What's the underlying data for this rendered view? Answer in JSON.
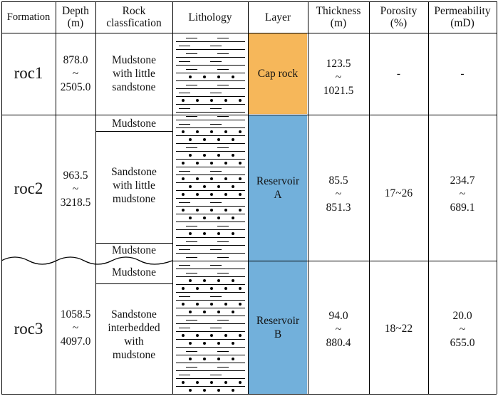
{
  "colors": {
    "cap_rock": "#F6B75A",
    "reservoir": "#72B0DB"
  },
  "headers": {
    "formation": "Formation",
    "depth": [
      "Depth",
      "(m)"
    ],
    "rock_class": [
      "Rock",
      "classfication"
    ],
    "lithology": "Lithology",
    "layer": "Layer",
    "thickness": [
      "Thickness",
      "(m)"
    ],
    "porosity": [
      "Porosity",
      "(%)"
    ],
    "permeability": [
      "Permeability",
      "(mD)"
    ]
  },
  "rows": [
    {
      "formation": "roc1",
      "depth": [
        "878.0",
        "~",
        "2505.0"
      ],
      "rock_class": [
        "Mudstone",
        "with little",
        "sandstone"
      ],
      "layer": [
        "Cap rock"
      ],
      "thickness": [
        "123.5",
        "~",
        "1021.5"
      ],
      "porosity": [
        "-"
      ],
      "permeability": [
        "-"
      ]
    },
    {
      "formation": "roc2",
      "depth": [
        "963.5",
        "~",
        "3218.5"
      ],
      "rock_class_top": "Mudstone",
      "rock_class": [
        "Sandstone",
        "with little",
        "mudstone"
      ],
      "rock_class_bottom": "Mudstone",
      "layer": [
        "Reservoir",
        "A"
      ],
      "thickness": [
        "85.5",
        "~",
        "851.3"
      ],
      "porosity": [
        "17~26"
      ],
      "permeability": [
        "234.7",
        "~",
        "689.1"
      ]
    },
    {
      "formation": "roc3",
      "depth": [
        "1058.5",
        "~",
        "4097.0"
      ],
      "rock_class_top": "Mudstone",
      "rock_class": [
        "Sandstone",
        "interbedded",
        "with",
        "mudstone"
      ],
      "layer": [
        "Reservoir",
        "B"
      ],
      "thickness": [
        "94.0",
        "~",
        "880.4"
      ],
      "porosity": [
        "18~22"
      ],
      "permeability": [
        "20.0",
        "~",
        "655.0"
      ]
    }
  ]
}
